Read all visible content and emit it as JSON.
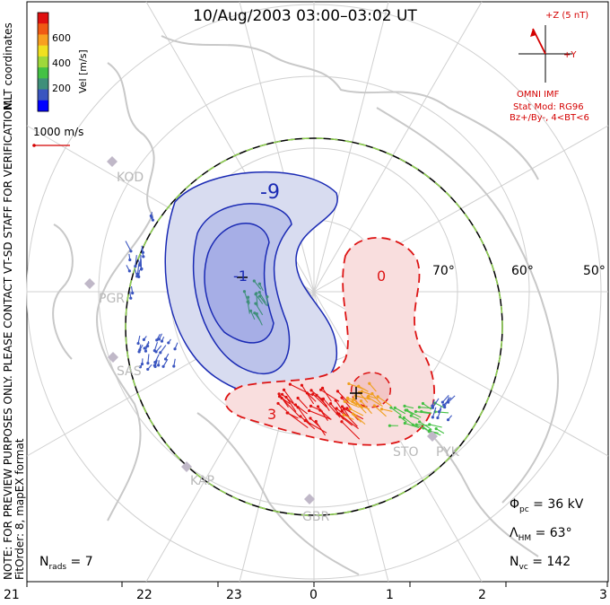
{
  "title": "10/Aug/2003 03:00–03:02 UT",
  "colorbar": {
    "label": "Vel [m/s]",
    "ticks": [
      "600",
      "400",
      "200"
    ],
    "colors": [
      "#0000ff",
      "#3a55c0",
      "#3f8f7a",
      "#44c144",
      "#9fd83a",
      "#f0e020",
      "#f8a020",
      "#f05a14",
      "#e01010"
    ]
  },
  "coord_label": "MLT coordinates",
  "vector_scale": "1000 m/s",
  "imf": {
    "axis_z": "+Z (5 nT)",
    "axis_y": "+Y",
    "label": "OMNI IMF",
    "model_line1": "Stat Mod: RG96",
    "model_line2": "Bz+/By-, 4<BT<6"
  },
  "notes": {
    "preview": "NOTE: FOR PREVIEW PURPOSES ONLY. PLEASE CONTACT VT-SD STAFF FOR VERIFICATION.",
    "fit": "FitOrder: 8, mapEX format"
  },
  "latitude_labels": [
    "70°",
    "60°",
    "50°"
  ],
  "contour_labels": [
    "-9",
    "-1",
    "3",
    "0",
    "+"
  ],
  "stations": [
    "KOD",
    "PGR",
    "SAS",
    "KAP",
    "GBR",
    "STO",
    "PYK"
  ],
  "mlt_labels": [
    "21",
    "22",
    "23",
    "0",
    "1",
    "2",
    "3"
  ],
  "stats": {
    "phi_sym": "Φ",
    "phi_sub": "pc",
    "phi_val": " = 36 kV",
    "lam_sym": "Λ",
    "lam_sub": "HM",
    "lam_val": " = 63°",
    "nvc_sym": "N",
    "nvc_sub": "vc",
    "nvc_val": " = 142",
    "nrads_sym": "N",
    "nrads_sub": "rads",
    "nrads_val": " = 7"
  }
}
